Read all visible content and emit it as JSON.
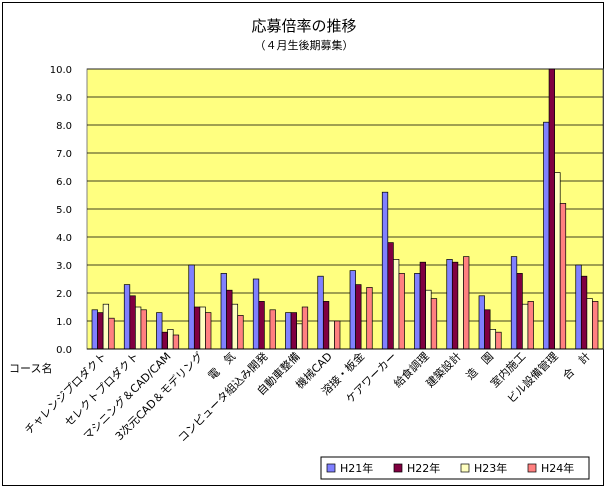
{
  "chart_data": {
    "type": "bar",
    "title": "応募倍率の推移",
    "subtitle": "（４月生後期募集）",
    "xlabel": "コース名",
    "ylabel": "",
    "ylim": [
      0,
      10.0
    ],
    "yticks": [
      "0.0",
      "1.0",
      "2.0",
      "3.0",
      "4.0",
      "5.0",
      "6.0",
      "7.0",
      "8.0",
      "9.0",
      "10.0"
    ],
    "grid": true,
    "legend_position": "bottom-right",
    "categories": [
      "チャレンジプロダクト",
      "セレクトプロダクト",
      "マシニング＆CAD/CAM",
      "3次元CAD＆モデリング",
      "電　気",
      "コンピュータ組込み開発",
      "自動車整備",
      "機械CAD",
      "溶接・板金",
      "ケアワーカー",
      "給食調理",
      "建築設計",
      "造　園",
      "室内施工",
      "ビル設備管理",
      "合　計"
    ],
    "series": [
      {
        "name": "H21年",
        "color": "#8080ff",
        "values": [
          1.4,
          2.3,
          1.3,
          3.0,
          2.7,
          2.5,
          1.3,
          2.6,
          2.8,
          5.6,
          2.7,
          3.2,
          1.9,
          3.3,
          8.1,
          3.0
        ]
      },
      {
        "name": "H22年",
        "color": "#800040",
        "values": [
          1.3,
          1.9,
          0.6,
          1.5,
          2.1,
          1.7,
          1.3,
          1.7,
          2.3,
          3.8,
          3.1,
          3.1,
          1.4,
          2.7,
          10.0,
          2.6
        ]
      },
      {
        "name": "H23年",
        "color": "#ffffc0",
        "values": [
          1.6,
          1.5,
          0.7,
          1.5,
          1.6,
          0.0,
          0.9,
          1.0,
          0.0,
          3.2,
          2.1,
          3.0,
          0.7,
          1.6,
          6.3,
          1.8
        ]
      },
      {
        "name": "H24年",
        "color": "#ff8080",
        "values": [
          1.1,
          1.4,
          0.5,
          1.3,
          1.2,
          1.4,
          1.5,
          1.0,
          2.2,
          2.7,
          1.8,
          3.3,
          0.6,
          1.7,
          5.2,
          1.7
        ]
      }
    ]
  }
}
